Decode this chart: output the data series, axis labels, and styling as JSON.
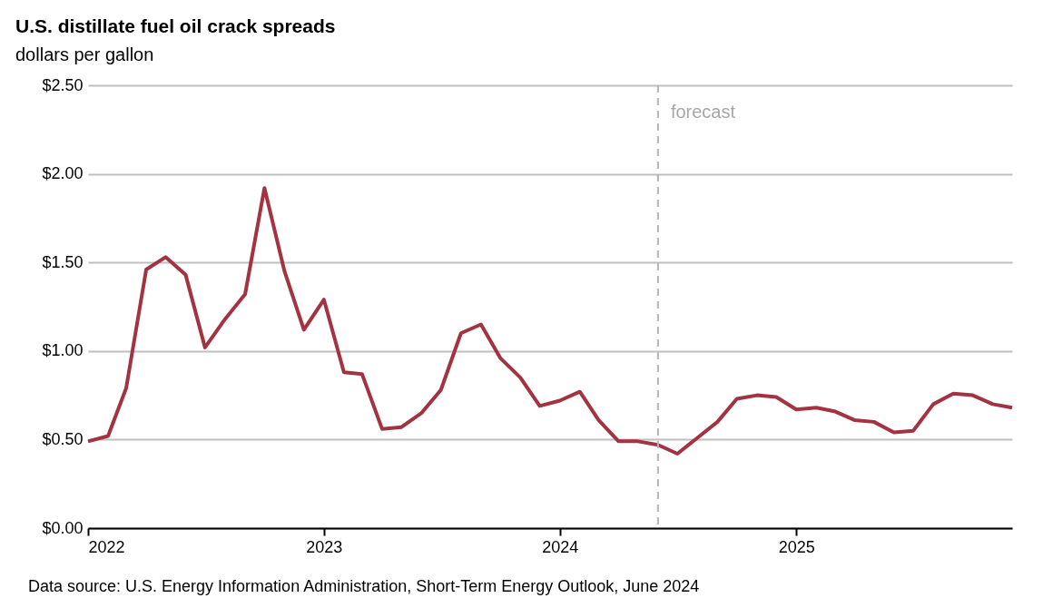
{
  "chart_data": {
    "type": "line",
    "title": "U.S. distillate fuel oil crack spreads",
    "subtitle": "dollars per gallon",
    "x": [
      "2022-01",
      "2022-02",
      "2022-03",
      "2022-04",
      "2022-05",
      "2022-06",
      "2022-07",
      "2022-08",
      "2022-09",
      "2022-10",
      "2022-11",
      "2022-12",
      "2023-01",
      "2023-02",
      "2023-03",
      "2023-04",
      "2023-05",
      "2023-06",
      "2023-07",
      "2023-08",
      "2023-09",
      "2023-10",
      "2023-11",
      "2023-12",
      "2024-01",
      "2024-02",
      "2024-03",
      "2024-04",
      "2024-05",
      "2024-06",
      "2024-07",
      "2024-08",
      "2024-09",
      "2024-10",
      "2024-11",
      "2024-12",
      "2025-01",
      "2025-02",
      "2025-03",
      "2025-04",
      "2025-05",
      "2025-06",
      "2025-07",
      "2025-08",
      "2025-09",
      "2025-10",
      "2025-11",
      "2025-12"
    ],
    "series": [
      {
        "color": "#a33340",
        "values": [
          0.49,
          0.52,
          0.79,
          1.46,
          1.53,
          1.43,
          1.02,
          1.18,
          1.32,
          1.92,
          1.45,
          1.12,
          1.29,
          0.88,
          0.87,
          0.56,
          0.57,
          0.65,
          0.78,
          1.1,
          1.15,
          0.96,
          0.85,
          0.69,
          0.72,
          0.77,
          0.61,
          0.49,
          0.49,
          0.47,
          0.42,
          0.51,
          0.6,
          0.73,
          0.75,
          0.74,
          0.67,
          0.68,
          0.66,
          0.61,
          0.6,
          0.54,
          0.55,
          0.7,
          0.76,
          0.75,
          0.7,
          0.68
        ]
      }
    ],
    "xlim": [
      "2022-01",
      "2025-12"
    ],
    "xticks": [
      "2022",
      "2023",
      "2024",
      "2025"
    ],
    "ylim": [
      0,
      2.5
    ],
    "yticks": [
      {
        "value": 0,
        "label": "$0.00"
      },
      {
        "value": 0.5,
        "label": "$0.50"
      },
      {
        "value": 1.0,
        "label": "$1.00"
      },
      {
        "value": 1.5,
        "label": "$1.50"
      },
      {
        "value": 2.0,
        "label": "$2.00"
      },
      {
        "value": 2.5,
        "label": "$2.50"
      }
    ],
    "grid": "y",
    "marker": "none",
    "line_style": "solid",
    "ref_lines": [
      {
        "axis": "x",
        "value": "2024-06",
        "label": "forecast",
        "color": "#b4b4b4",
        "line_style": "dashed"
      }
    ],
    "annotations": [
      "Data source: U.S. Energy Information Administration, Short-Term Energy Outlook, June 2024"
    ]
  }
}
